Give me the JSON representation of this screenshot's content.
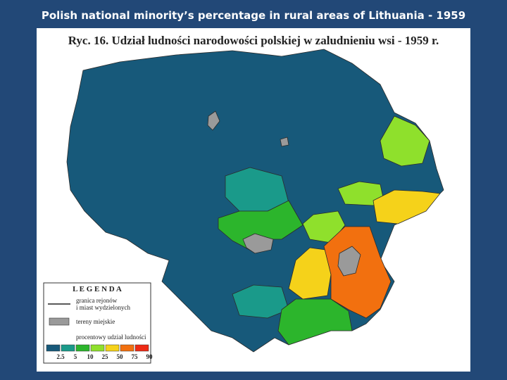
{
  "title": "Polish national minority’s percentage in rural areas of Lithuania - 1959",
  "map": {
    "heading": "Ryc. 16.  Udział ludności narodowości polskiej w zaludnieniu wsi - 1959 r.",
    "legend": {
      "title": "L E G E N D A",
      "border_lines": [
        "granica rejonów",
        "i miast wydzielonych"
      ],
      "urban": "tereny miejskie",
      "scale_title": "procentowy udział ludności",
      "colors": [
        "#17597a",
        "#1a9a8a",
        "#2cb52c",
        "#8fe02c",
        "#f5d21a",
        "#f2700f",
        "#ee2a14"
      ],
      "breaks": [
        2.5,
        5,
        10,
        25,
        50,
        75,
        90
      ]
    }
  }
}
